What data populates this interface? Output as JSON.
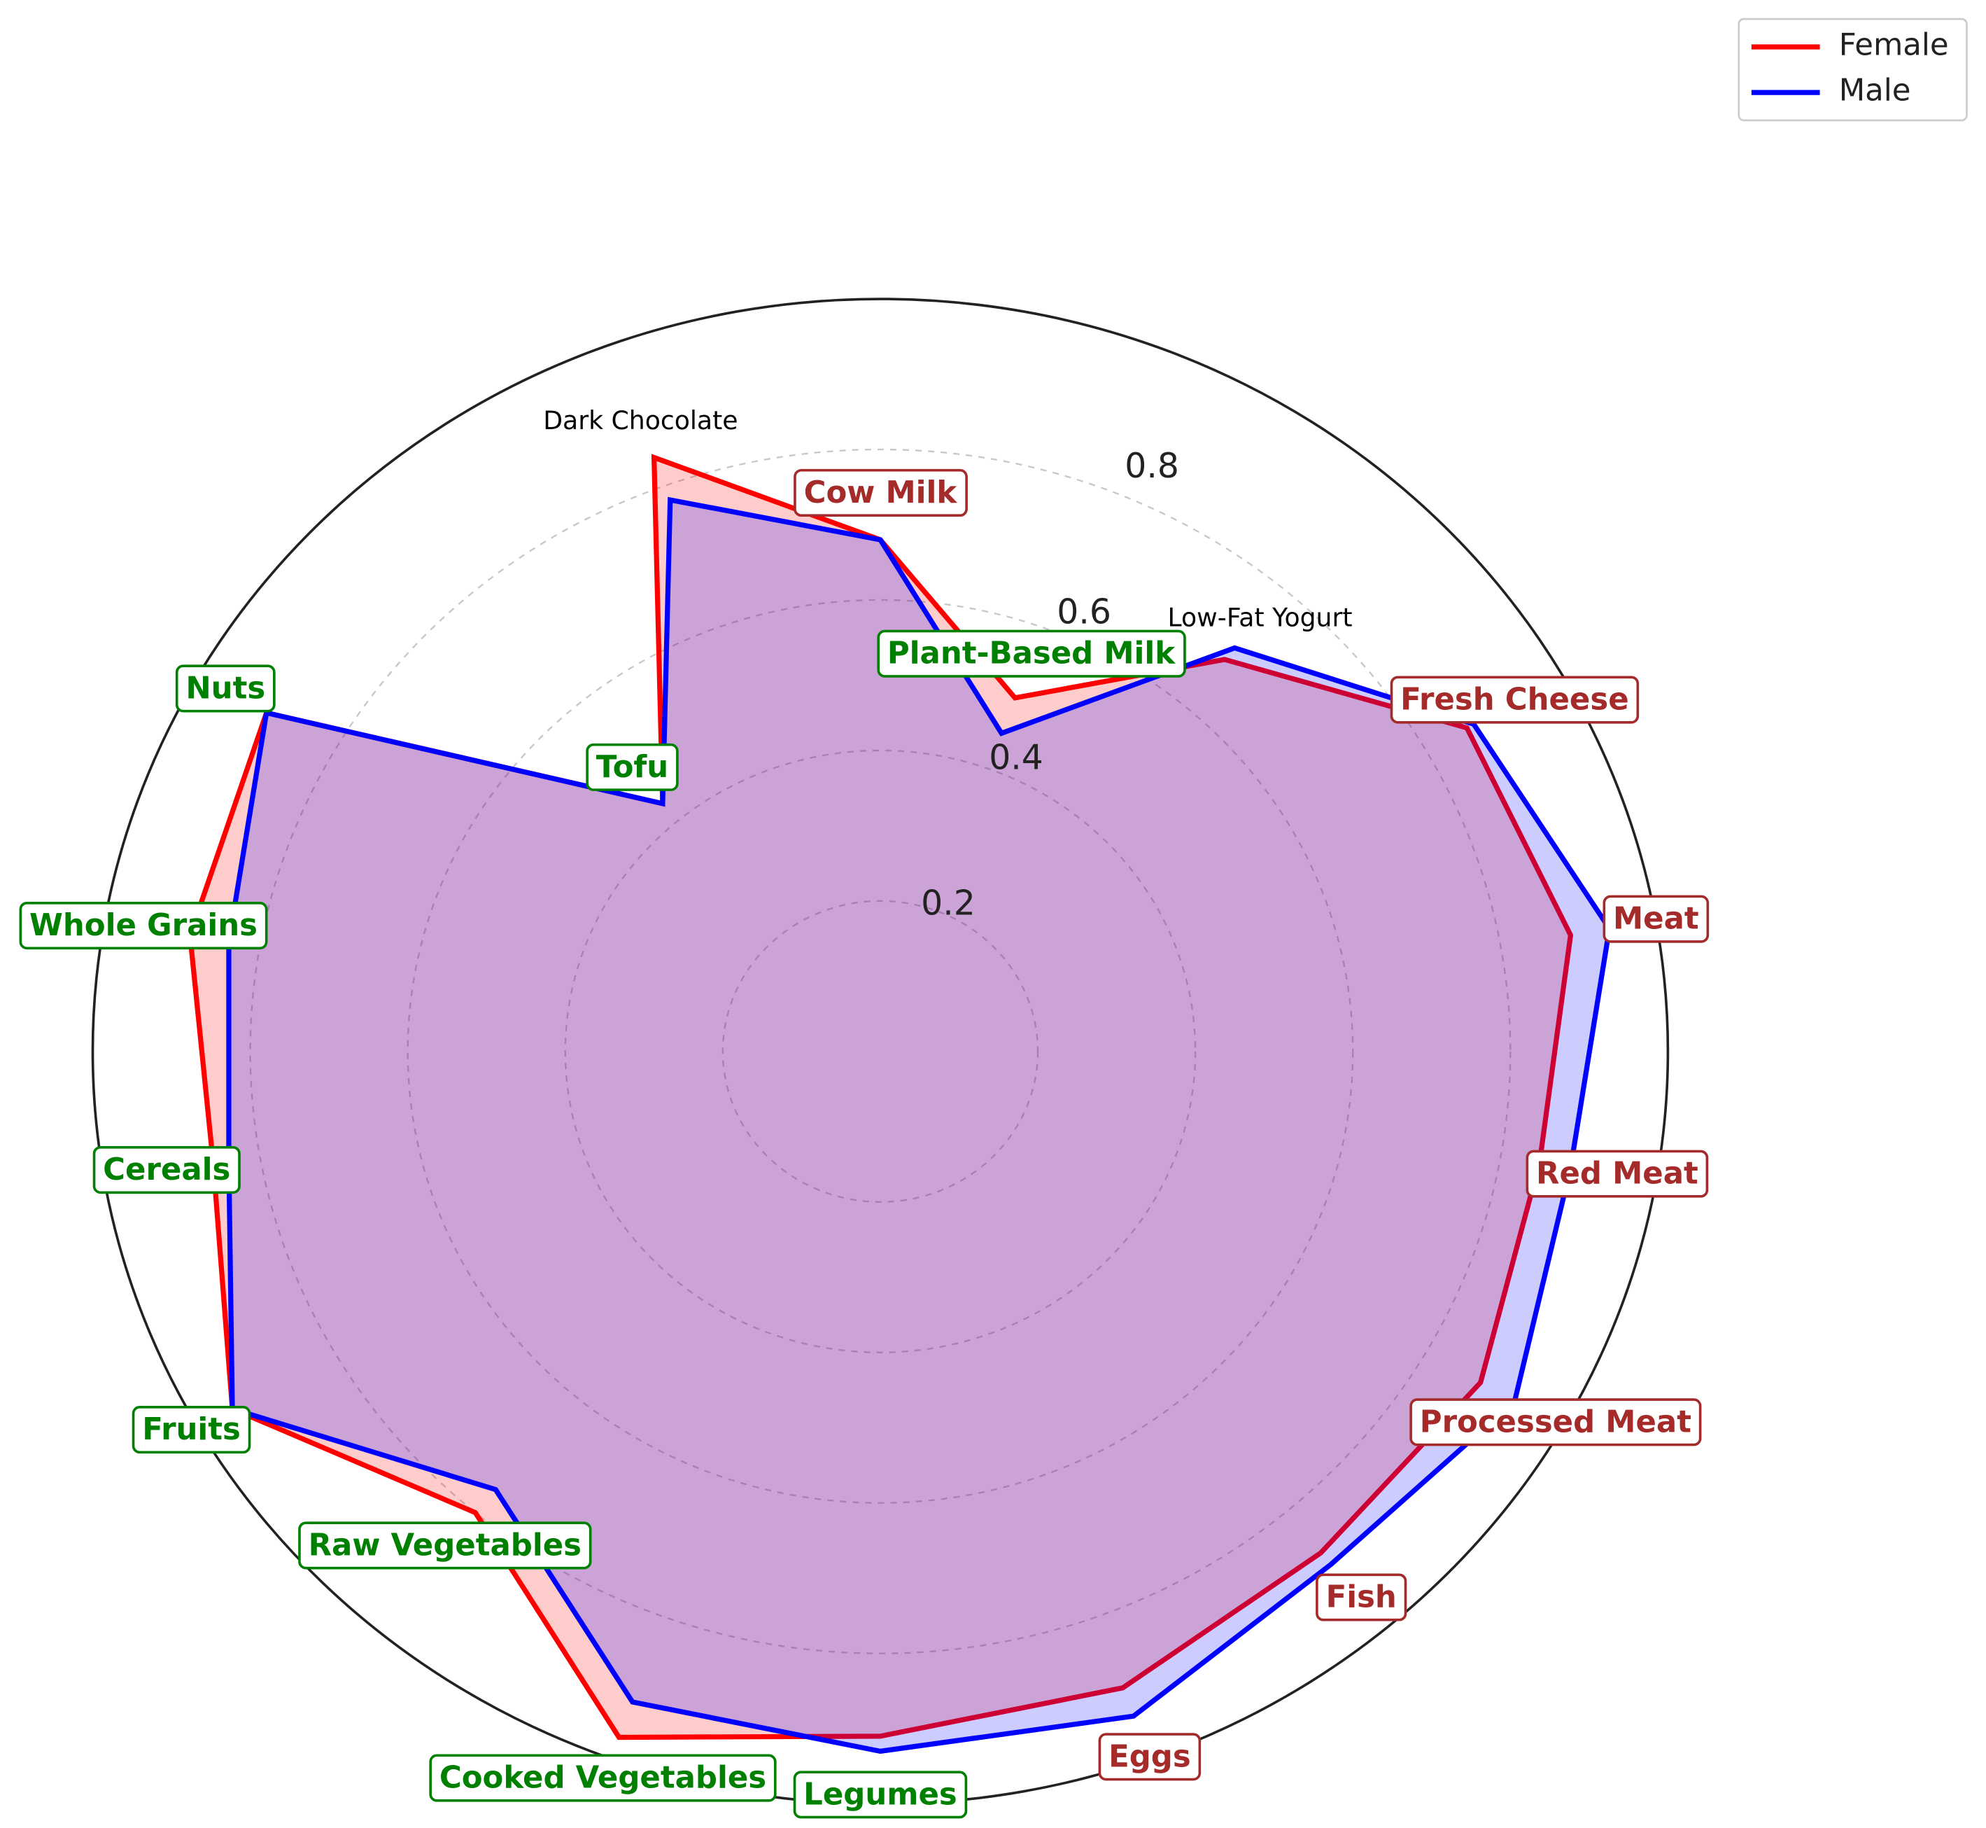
{
  "chart_data": {
    "type": "radar",
    "categories": [
      "Cow Milk",
      "Plant-Based Milk",
      "Low-Fat Yogurt",
      "Fresh Cheese",
      "Meat",
      "Red Meat",
      "Processed Meat",
      "Fish",
      "Eggs",
      "Legumes",
      "Cooked Vegetables",
      "Raw Vegetables",
      "Fruits",
      "Cereals",
      "Whole Grains",
      "Nuts",
      "Tofu",
      "Dark Chocolate"
    ],
    "label_colors": [
      "#a52a2a",
      "#008000",
      "#000000",
      "#a52a2a",
      "#a52a2a",
      "#a52a2a",
      "#a52a2a",
      "#a52a2a",
      "#a52a2a",
      "#008000",
      "#008000",
      "#008000",
      "#008000",
      "#008000",
      "#008000",
      "#008000",
      "#008000",
      "#000000"
    ],
    "label_boxes": [
      true,
      true,
      false,
      true,
      true,
      true,
      true,
      true,
      true,
      true,
      true,
      true,
      true,
      true,
      true,
      true,
      true,
      false
    ],
    "series": [
      {
        "name": "Female",
        "color": "#ff0000",
        "values": [
          0.68,
          0.5,
          0.68,
          0.86,
          0.89,
          0.85,
          0.88,
          0.87,
          0.9,
          0.91,
          0.97,
          0.8,
          0.95,
          0.86,
          0.89,
          0.9,
          0.43,
          0.84
        ]
      },
      {
        "name": "Male",
        "color": "#0000ff",
        "values": [
          0.68,
          0.45,
          0.7,
          0.87,
          0.94,
          0.89,
          0.93,
          0.89,
          0.94,
          0.93,
          0.92,
          0.76,
          0.95,
          0.84,
          0.84,
          0.9,
          0.43,
          0.78
        ]
      }
    ],
    "ylim": [
      0,
      1
    ],
    "yticks": [
      0.2,
      0.4,
      0.6,
      0.8
    ],
    "grid": true,
    "legend": "upper right"
  }
}
